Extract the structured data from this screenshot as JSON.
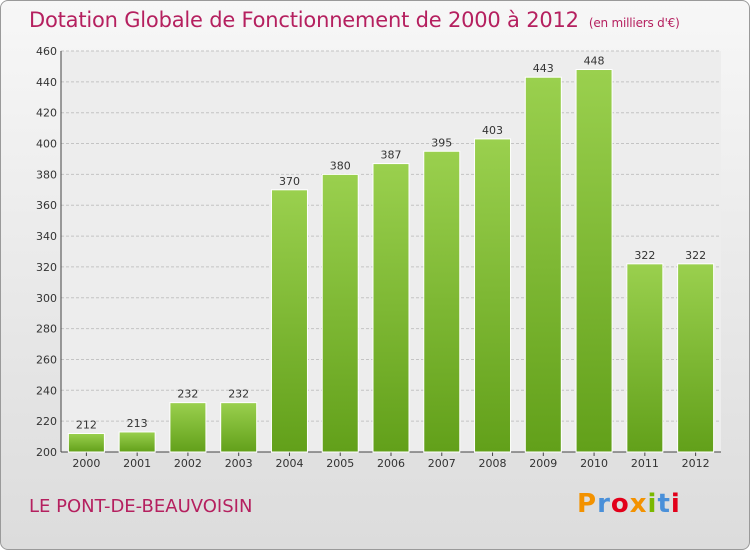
{
  "chart_data": {
    "type": "bar",
    "title": "Dotation Globale de Fonctionnement de 2000 à 2012",
    "unit_label": "(en milliers d'€)",
    "categories": [
      "2000",
      "2001",
      "2002",
      "2003",
      "2004",
      "2005",
      "2006",
      "2007",
      "2008",
      "2009",
      "2010",
      "2011",
      "2012"
    ],
    "values": [
      212,
      213,
      232,
      232,
      370,
      380,
      387,
      395,
      403,
      443,
      448,
      322,
      322
    ],
    "ylim": [
      200,
      460
    ],
    "yticks": [
      200,
      220,
      240,
      260,
      280,
      300,
      320,
      340,
      360,
      380,
      400,
      420,
      440,
      460
    ],
    "grid": true,
    "bar_color": "#7cc02c"
  },
  "footer": {
    "commune": "LE PONT-DE-BEAUVOISIN",
    "brand": "Proxiti"
  },
  "colors": {
    "title": "#b5205f",
    "brand": [
      "#f39200",
      "#4a90d9",
      "#e2001a",
      "#f39200",
      "#7ab800",
      "#4a90d9",
      "#e2001a"
    ]
  }
}
